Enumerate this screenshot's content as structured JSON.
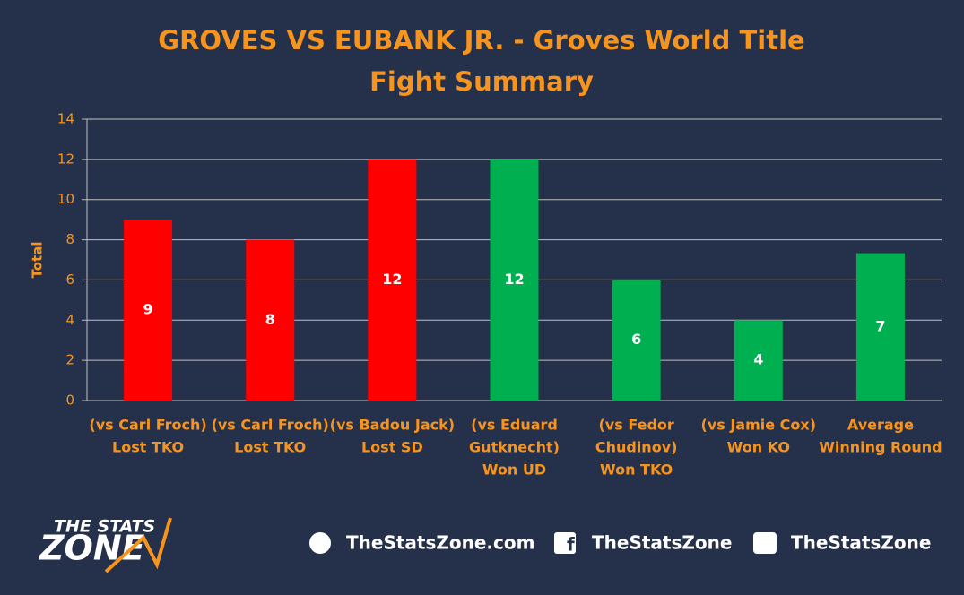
{
  "chart_data": {
    "type": "bar",
    "title": "GROVES VS EUBANK JR. - Groves World Title Fight Summary",
    "y_label": "Total",
    "categories": [
      [
        "(vs Carl Froch)",
        "Lost TKO"
      ],
      [
        "(vs Carl Froch)",
        "Lost TKO"
      ],
      [
        "(vs Badou Jack)",
        "Lost SD"
      ],
      [
        "(vs Eduard",
        "Gutknecht)",
        "Won UD"
      ],
      [
        "(vs Fedor",
        "Chudinov)",
        "Won TKO"
      ],
      [
        "(vs Jamie Cox)",
        "Won KO"
      ],
      [
        "Average",
        "Winning Round"
      ]
    ],
    "values": [
      9,
      8,
      12,
      12,
      6,
      4,
      7.33
    ],
    "value_labels": [
      "9",
      "8",
      "12",
      "12",
      "6",
      "4",
      "7"
    ],
    "colors": [
      "#ff0000",
      "#ff0000",
      "#ff0000",
      "#00b050",
      "#00b050",
      "#00b050",
      "#00b050"
    ],
    "ylim": [
      0,
      14
    ],
    "yticks": [
      0,
      2,
      4,
      6,
      8,
      10,
      12,
      14
    ],
    "grid": true
  },
  "footer": {
    "logo_top": "THE STATS",
    "logo_bottom": "ZONE",
    "website": "TheStatsZone.com",
    "facebook": "TheStatsZone",
    "twitter": "TheStatsZone"
  }
}
